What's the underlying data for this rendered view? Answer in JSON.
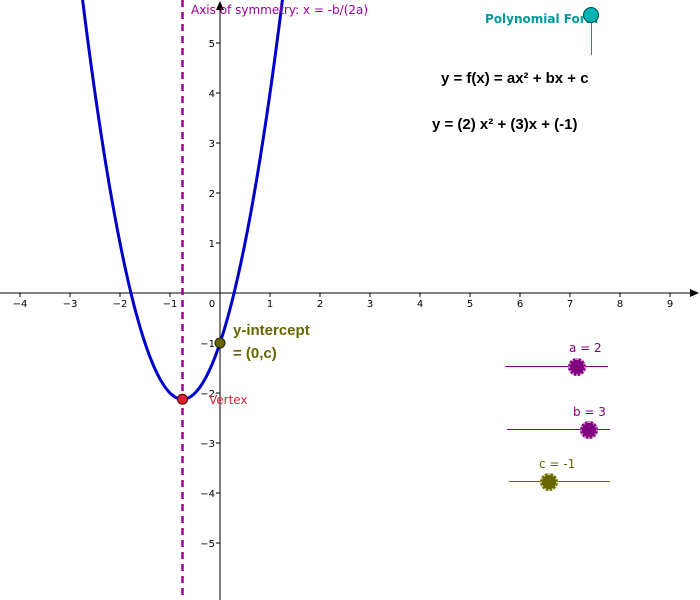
{
  "axis_of_symmetry_label": "Axis of symmetry: x = -b/(2a)",
  "toggle": {
    "label": "Polynomial Form",
    "checked": true
  },
  "equations": {
    "general": "y = f(x) = ax² + bx + c",
    "specific": "y = (2) x² + (3)x + (-1)"
  },
  "points": {
    "y_intercept": {
      "label_line1": "y-intercept",
      "label_line2": "= (0,c)",
      "x": 0,
      "y": -1
    },
    "vertex": {
      "label": "Vertex",
      "x": -0.75,
      "y": -2.125
    }
  },
  "sliders": [
    {
      "name": "a",
      "label": "a = 2",
      "value": 2,
      "min": -5,
      "max": 5,
      "color": "#800080"
    },
    {
      "name": "b",
      "label": "b = 3",
      "value": 3,
      "min": -5,
      "max": 5,
      "color": "#800080"
    },
    {
      "name": "c",
      "label": "c = -1",
      "value": -1,
      "min": -5,
      "max": 5,
      "color": "#666600"
    }
  ],
  "axes": {
    "x_ticks": [
      "−4",
      "−3",
      "−2",
      "−1",
      "0",
      "1",
      "2",
      "3",
      "4",
      "5",
      "6",
      "7",
      "8",
      "9"
    ],
    "y_ticks": [
      "5",
      "4",
      "3",
      "2",
      "1",
      "−1",
      "−2",
      "−3",
      "−4",
      "−5"
    ]
  },
  "colors": {
    "parabola": "#0000cc",
    "axis_of_symmetry": "#990099",
    "vertex": "#dd2233",
    "y_intercept": "#666600",
    "toggle": "#009999"
  }
}
